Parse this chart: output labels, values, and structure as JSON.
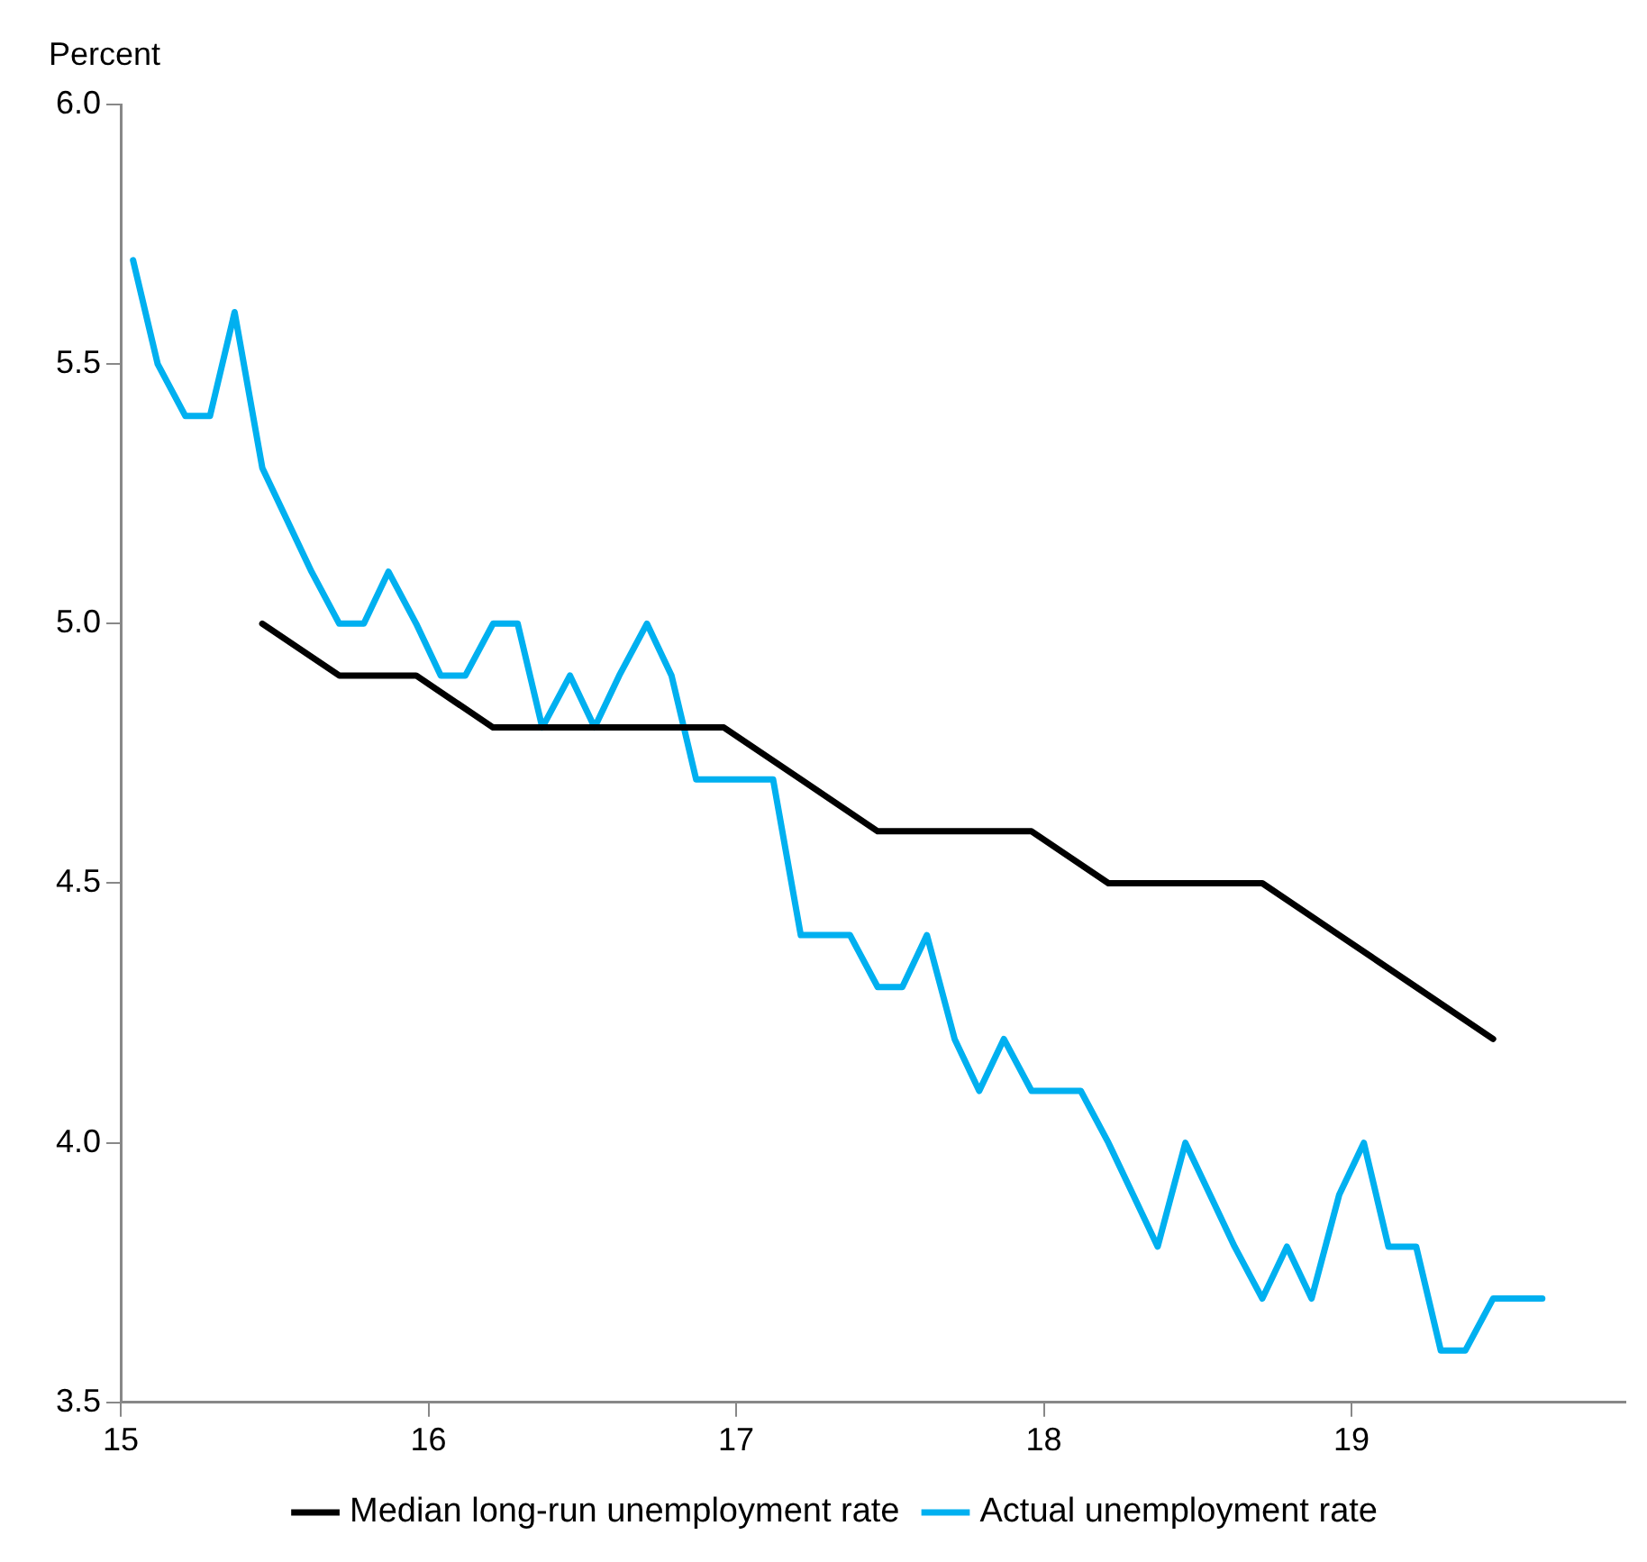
{
  "chart_data": {
    "type": "line",
    "ylabel": "Percent",
    "xlim": [
      15,
      19.89
    ],
    "xticks": [
      15,
      16,
      17,
      18,
      19
    ],
    "ylim": [
      3.5,
      6.0
    ],
    "yticks": [
      3.5,
      {
        "value": 4,
        "label": "4.0"
      },
      4.5,
      {
        "value": 5,
        "label": "5.0"
      },
      5.5,
      {
        "value": 6,
        "label": "6.0"
      }
    ],
    "grid": false,
    "legend": "bottom",
    "marker": "none",
    "line_style": "solid",
    "series": [
      {
        "name": "Median long-run unemployment rate",
        "color": "#000000",
        "x": [
          15.46,
          15.71,
          15.96,
          16.21,
          16.46,
          16.71,
          16.96,
          17.21,
          17.46,
          17.71,
          17.96,
          18.21,
          18.46,
          18.71,
          18.96,
          19.21,
          19.46
        ],
        "values": [
          5.0,
          4.9,
          4.9,
          4.8,
          4.8,
          4.8,
          4.8,
          4.7,
          4.6,
          4.6,
          4.6,
          4.5,
          4.5,
          4.5,
          4.4,
          4.3,
          4.2
        ]
      },
      {
        "name": "Actual unemployment rate",
        "color": "#00b0f0",
        "x": [
          15.04,
          15.12,
          15.21,
          15.29,
          15.37,
          15.46,
          15.54,
          15.62,
          15.71,
          15.79,
          15.87,
          15.96,
          16.04,
          16.12,
          16.21,
          16.29,
          16.37,
          16.46,
          16.54,
          16.62,
          16.71,
          16.79,
          16.87,
          16.96,
          17.04,
          17.12,
          17.21,
          17.29,
          17.37,
          17.46,
          17.54,
          17.62,
          17.71,
          17.79,
          17.87,
          17.96,
          18.04,
          18.12,
          18.21,
          18.29,
          18.37,
          18.46,
          18.54,
          18.62,
          18.71,
          18.79,
          18.87,
          18.96,
          19.04,
          19.12,
          19.21,
          19.29,
          19.37,
          19.46,
          19.54,
          19.62
        ],
        "values": [
          5.7,
          5.5,
          5.4,
          5.4,
          5.6,
          5.3,
          5.2,
          5.1,
          5.0,
          5.0,
          5.1,
          5.0,
          4.9,
          4.9,
          5.0,
          5.0,
          4.8,
          4.9,
          4.8,
          4.9,
          5.0,
          4.9,
          4.7,
          4.7,
          4.7,
          4.7,
          4.4,
          4.4,
          4.4,
          4.3,
          4.3,
          4.4,
          4.2,
          4.1,
          4.2,
          4.1,
          4.1,
          4.1,
          4.0,
          3.9,
          3.8,
          4.0,
          3.9,
          3.8,
          3.7,
          3.8,
          3.7,
          3.9,
          4.0,
          3.8,
          3.8,
          3.6,
          3.6,
          3.7,
          3.7,
          3.7
        ]
      }
    ]
  }
}
